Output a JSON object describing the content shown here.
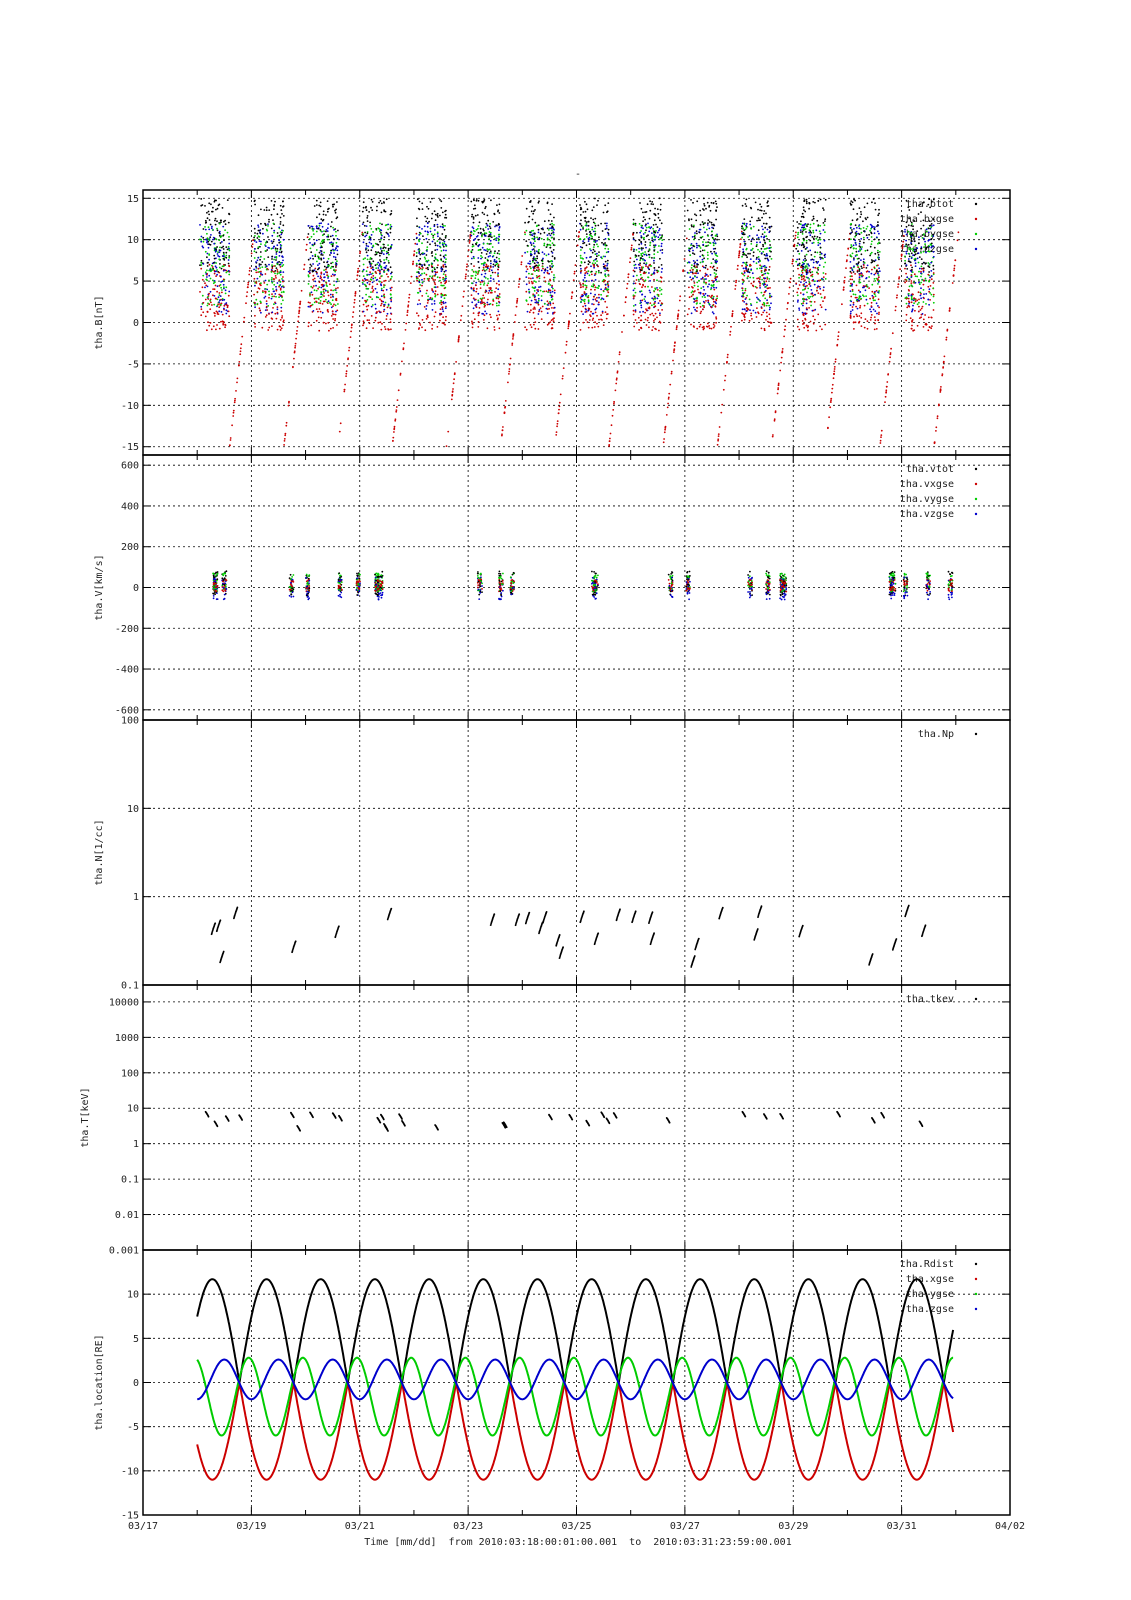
{
  "chart_data": [
    {
      "type": "scatter",
      "title": "",
      "ylabel": "tha.B[nT]",
      "yscale": "linear",
      "ylim": [
        -16,
        16
      ],
      "yticks": [
        15,
        10,
        5,
        0,
        -5,
        -10,
        -15
      ],
      "ytick_labels": [
        "15",
        "10",
        "5",
        "0",
        "-5",
        "-10",
        "-15"
      ],
      "legend": "top-right",
      "series": [
        {
          "name": "tha.btot",
          "color": "#000000"
        },
        {
          "name": "tha.bxgse",
          "color": "#cc0000"
        },
        {
          "name": "tha.bygse",
          "color": "#00cc00"
        },
        {
          "name": "tha.bzgse",
          "color": "#0000cc"
        }
      ],
      "legend_labels": [
        "tha.btot",
        "tha.bxgse",
        "tha.bygse",
        "tha.bzgse"
      ]
    },
    {
      "type": "scatter",
      "ylabel": "tha.V[km/s]",
      "yscale": "linear",
      "ylim": [
        -650,
        650
      ],
      "yticks": [
        600,
        400,
        200,
        0,
        -200,
        -400,
        -600
      ],
      "ytick_labels": [
        "600",
        "400",
        "200",
        "0",
        "-200",
        "-400",
        "-600"
      ],
      "legend": "top-right",
      "series": [
        {
          "name": "tha.vtot",
          "color": "#000000"
        },
        {
          "name": "tha.vxgse",
          "color": "#cc0000"
        },
        {
          "name": "tha.vygse",
          "color": "#00cc00"
        },
        {
          "name": "tha.vzgse",
          "color": "#0000cc"
        }
      ],
      "legend_labels": [
        "tha.vtot",
        "tha.vxgse",
        "tha.vygse",
        "tha.vzgse"
      ]
    },
    {
      "type": "scatter",
      "ylabel": "tha.N[1/cc]",
      "yscale": "log",
      "ylim": [
        0.1,
        100
      ],
      "yticks": [
        100,
        10,
        1,
        0.1
      ],
      "ytick_labels": [
        "100",
        "10",
        "1",
        "0.1"
      ],
      "legend": "top-right",
      "series": [
        {
          "name": "tha.Np",
          "color": "#000000"
        }
      ],
      "legend_labels": [
        "tha.Np"
      ]
    },
    {
      "type": "scatter",
      "ylabel": "tha.T[keV]",
      "yscale": "log",
      "ylim": [
        0.001,
        30000
      ],
      "yticks": [
        10000,
        1000,
        100,
        10,
        1,
        0.1,
        0.01,
        0.001
      ],
      "ytick_labels": [
        "10000",
        "1000",
        "100",
        "10",
        "1",
        "0.1",
        "0.01",
        "0.001"
      ],
      "legend": "top-right",
      "series": [
        {
          "name": "tha.tkev",
          "color": "#000000"
        }
      ],
      "legend_labels": [
        "tha.tkev"
      ]
    },
    {
      "type": "line",
      "ylabel": "tha.location[RE]",
      "yscale": "linear",
      "ylim": [
        -15,
        15
      ],
      "yticks": [
        10,
        5,
        0,
        -5,
        -10,
        -15
      ],
      "ytick_labels": [
        "10",
        "5",
        "0",
        "-5",
        "-10",
        "-15"
      ],
      "legend": "top-right",
      "orbit": {
        "start": "03/18",
        "end": "03/31",
        "period_days": 1.0,
        "rdist": {
          "max": 11.7,
          "min": 0.0,
          "start": 7.0
        },
        "xgse": {
          "max": 0.0,
          "min": -11.0,
          "start": -6.8
        },
        "ygse": {
          "max": 2.8,
          "min": -6.0,
          "start": 1.2
        },
        "zgse": {
          "max": 2.6,
          "min": -1.9,
          "start": -1.7
        }
      },
      "series": [
        {
          "name": "tha.Rdist",
          "color": "#000000"
        },
        {
          "name": "tha.xgse",
          "color": "#cc0000"
        },
        {
          "name": "tha.ygse",
          "color": "#00cc00"
        },
        {
          "name": "tha.zgse",
          "color": "#0000cc"
        }
      ],
      "legend_labels": [
        "tha.Rdist",
        "tha.xgse",
        "tha.ygse",
        "tha.zgse"
      ]
    }
  ],
  "x_axis": {
    "tick_labels": [
      "03/17",
      "03/19",
      "03/21",
      "03/23",
      "03/25",
      "03/27",
      "03/29",
      "03/31",
      "04/02"
    ],
    "range": [
      "03/17",
      "04/02"
    ],
    "grid": true
  },
  "bottom_label": "Time [mm/dd]  from 2010:03:18:00:01:00.001  to  2010:03:31:23:59:00.001",
  "top_mark": "-"
}
